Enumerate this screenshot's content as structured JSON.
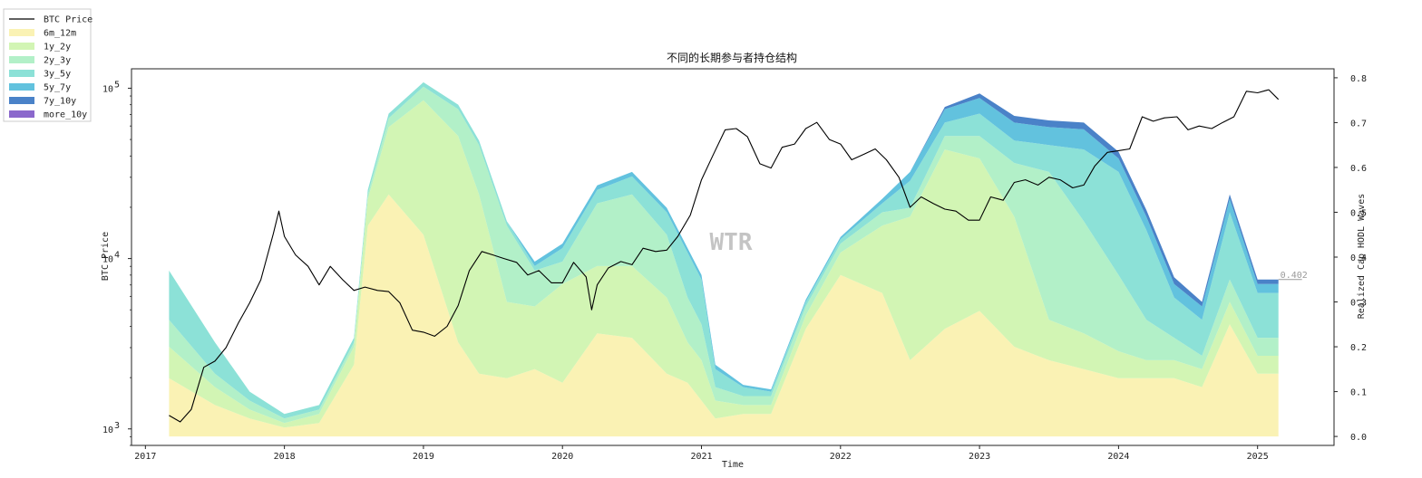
{
  "chart_data": {
    "type": "area",
    "title": "不同的长期参与者持仓结构",
    "xlabel": "Time",
    "ylabel_left": "BTC Price",
    "ylabel_right": "Realized Cap HODL Waves",
    "x_ticks": [
      "2017",
      "2018",
      "2019",
      "2020",
      "2021",
      "2022",
      "2023",
      "2024",
      "2025"
    ],
    "x_range": [
      2016.9,
      2025.55
    ],
    "yleft_scale": "log",
    "yleft_range": [
      800,
      130000
    ],
    "yleft_ticks": [
      {
        "value": 1000,
        "base": "10",
        "exp": "3"
      },
      {
        "value": 10000,
        "base": "10",
        "exp": "4"
      },
      {
        "value": 100000,
        "base": "10",
        "exp": "5"
      }
    ],
    "yright_range": [
      -0.02,
      0.82
    ],
    "yright_ticks": [
      "0.0",
      "0.1",
      "0.2",
      "0.3",
      "0.4",
      "0.5",
      "0.6",
      "0.7",
      "0.8"
    ],
    "watermark": "WTR",
    "last_value_label": "0.402",
    "legend_position": "outside-top-left",
    "legend": [
      "BTC Price",
      "6m_12m",
      "1y_2y",
      "2y_3y",
      "3y_5y",
      "5y_7y",
      "7y_10y",
      "more_10y"
    ],
    "colors": {
      "price": "#000000",
      "6m_12m": "#faf2b4",
      "1y_2y": "#d2f5b4",
      "2y_3y": "#b2f0c8",
      "3y_5y": "#8ce1d7",
      "5y_7y": "#62c2de",
      "7y_10y": "#4a82c8",
      "more_10y": "#8b68cc"
    },
    "stack_x": [
      2017.17,
      2017.5,
      2017.75,
      2018.0,
      2018.25,
      2018.5,
      2018.6,
      2018.75,
      2019.0,
      2019.25,
      2019.4,
      2019.6,
      2019.8,
      2020.0,
      2020.25,
      2020.5,
      2020.75,
      2020.9,
      2021.0,
      2021.1,
      2021.3,
      2021.5,
      2021.75,
      2022.0,
      2022.3,
      2022.5,
      2022.75,
      2023.0,
      2023.25,
      2023.5,
      2023.75,
      2024.0,
      2024.2,
      2024.4,
      2024.6,
      2024.8,
      2025.0,
      2025.15
    ],
    "series": [
      {
        "name": "6m_12m",
        "values": [
          0.13,
          0.07,
          0.04,
          0.02,
          0.03,
          0.16,
          0.47,
          0.54,
          0.45,
          0.21,
          0.14,
          0.13,
          0.15,
          0.12,
          0.23,
          0.22,
          0.14,
          0.12,
          0.08,
          0.04,
          0.05,
          0.05,
          0.24,
          0.36,
          0.32,
          0.17,
          0.24,
          0.28,
          0.2,
          0.17,
          0.15,
          0.13,
          0.13,
          0.13,
          0.11,
          0.25,
          0.14,
          0.14
        ]
      },
      {
        "name": "1y_2y",
        "values": [
          0.07,
          0.04,
          0.02,
          0.01,
          0.02,
          0.04,
          0.06,
          0.15,
          0.3,
          0.46,
          0.4,
          0.17,
          0.14,
          0.22,
          0.15,
          0.16,
          0.17,
          0.09,
          0.09,
          0.04,
          0.02,
          0.02,
          0.03,
          0.05,
          0.15,
          0.32,
          0.4,
          0.34,
          0.29,
          0.09,
          0.08,
          0.06,
          0.04,
          0.04,
          0.04,
          0.05,
          0.04,
          0.04
        ]
      },
      {
        "name": "2y_3y",
        "values": [
          0.06,
          0.03,
          0.02,
          0.01,
          0.01,
          0.01,
          0.01,
          0.02,
          0.03,
          0.06,
          0.11,
          0.17,
          0.08,
          0.05,
          0.14,
          0.16,
          0.14,
          0.1,
          0.08,
          0.03,
          0.02,
          0.02,
          0.02,
          0.02,
          0.03,
          0.02,
          0.03,
          0.05,
          0.12,
          0.33,
          0.25,
          0.17,
          0.09,
          0.05,
          0.03,
          0.05,
          0.04,
          0.04
        ]
      },
      {
        "name": "3y_5y",
        "values": [
          0.11,
          0.07,
          0.02,
          0.01,
          0.01,
          0.01,
          0.01,
          0.01,
          0.01,
          0.01,
          0.01,
          0.01,
          0.01,
          0.03,
          0.03,
          0.04,
          0.05,
          0.1,
          0.1,
          0.04,
          0.02,
          0.01,
          0.01,
          0.01,
          0.02,
          0.06,
          0.03,
          0.05,
          0.05,
          0.06,
          0.16,
          0.23,
          0.2,
          0.09,
          0.08,
          0.15,
          0.1,
          0.1
        ]
      },
      {
        "name": "5y_7y",
        "values": [
          0.0,
          0.0,
          0.0,
          0.0,
          0.0,
          0.0,
          0.0,
          0.0,
          0.0,
          0.0,
          0.0,
          0.0,
          0.01,
          0.01,
          0.01,
          0.01,
          0.01,
          0.01,
          0.01,
          0.01,
          0.005,
          0.005,
          0.005,
          0.005,
          0.01,
          0.02,
          0.03,
          0.035,
          0.04,
          0.04,
          0.045,
          0.03,
          0.03,
          0.03,
          0.03,
          0.03,
          0.02,
          0.02
        ]
      },
      {
        "name": "7y_10y",
        "values": [
          0,
          0,
          0,
          0,
          0,
          0,
          0,
          0,
          0,
          0,
          0,
          0,
          0,
          0,
          0,
          0,
          0,
          0,
          0,
          0,
          0,
          0,
          0,
          0,
          0,
          0,
          0.005,
          0.01,
          0.015,
          0.015,
          0.015,
          0.015,
          0.015,
          0.015,
          0.01,
          0.01,
          0.01,
          0.01
        ]
      },
      {
        "name": "more_10y",
        "values": [
          0,
          0,
          0,
          0,
          0,
          0,
          0,
          0,
          0,
          0,
          0,
          0,
          0,
          0,
          0,
          0,
          0,
          0,
          0,
          0,
          0,
          0,
          0,
          0,
          0,
          0,
          0,
          0,
          0,
          0,
          0,
          0,
          0,
          0,
          0,
          0,
          0,
          0
        ]
      }
    ],
    "price": {
      "name": "BTC Price",
      "x": [
        2017.17,
        2017.25,
        2017.33,
        2017.42,
        2017.5,
        2017.58,
        2017.67,
        2017.75,
        2017.83,
        2017.92,
        2017.96,
        2018.0,
        2018.08,
        2018.17,
        2018.25,
        2018.33,
        2018.42,
        2018.5,
        2018.58,
        2018.67,
        2018.75,
        2018.83,
        2018.92,
        2019.0,
        2019.08,
        2019.17,
        2019.25,
        2019.33,
        2019.42,
        2019.5,
        2019.58,
        2019.67,
        2019.75,
        2019.83,
        2019.92,
        2020.0,
        2020.08,
        2020.17,
        2020.21,
        2020.25,
        2020.33,
        2020.42,
        2020.5,
        2020.58,
        2020.67,
        2020.75,
        2020.83,
        2020.92,
        2021.0,
        2021.08,
        2021.17,
        2021.25,
        2021.33,
        2021.42,
        2021.5,
        2021.58,
        2021.67,
        2021.75,
        2021.83,
        2021.92,
        2022.0,
        2022.08,
        2022.17,
        2022.25,
        2022.33,
        2022.42,
        2022.5,
        2022.58,
        2022.67,
        2022.75,
        2022.83,
        2022.92,
        2023.0,
        2023.08,
        2023.17,
        2023.25,
        2023.33,
        2023.42,
        2023.5,
        2023.58,
        2023.67,
        2023.75,
        2023.83,
        2023.92,
        2024.0,
        2024.08,
        2024.17,
        2024.25,
        2024.33,
        2024.42,
        2024.5,
        2024.58,
        2024.67,
        2024.75,
        2024.83,
        2024.92,
        2025.0,
        2025.08,
        2025.15
      ],
      "y": [
        1200,
        1100,
        1300,
        2300,
        2500,
        3000,
        4200,
        5500,
        7500,
        14000,
        19000,
        13500,
        10500,
        9000,
        7000,
        9000,
        7500,
        6500,
        6800,
        6500,
        6400,
        5500,
        3800,
        3700,
        3500,
        4000,
        5300,
        8500,
        11000,
        10500,
        10000,
        9500,
        8000,
        8500,
        7200,
        7200,
        9500,
        7800,
        5000,
        7000,
        8800,
        9600,
        9200,
        11500,
        11000,
        11200,
        13500,
        18000,
        29000,
        40000,
        57000,
        58000,
        52000,
        36000,
        34000,
        45000,
        47000,
        58000,
        63000,
        50000,
        47000,
        38000,
        41000,
        44000,
        38000,
        30000,
        20000,
        23000,
        21000,
        19500,
        19000,
        16800,
        16800,
        23000,
        22000,
        28000,
        29000,
        27000,
        30000,
        29000,
        26000,
        27000,
        35000,
        42000,
        43000,
        44000,
        68000,
        64000,
        67000,
        68000,
        57000,
        60000,
        58000,
        63000,
        68000,
        96000,
        94000,
        98000,
        86000
      ]
    }
  }
}
